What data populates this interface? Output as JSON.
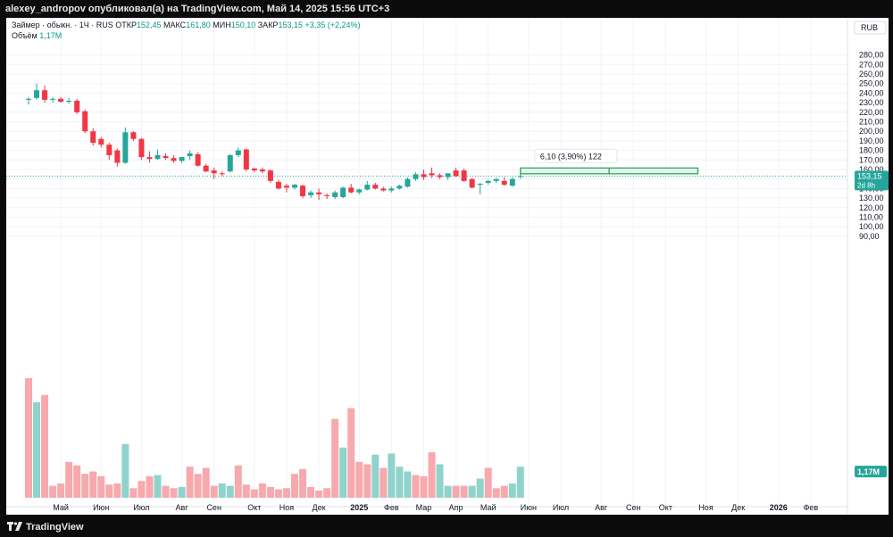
{
  "top_bar": {
    "text": "alexey_andropov опубликовал(а) на TradingView.com, Май 14, 2025 15:56 UTC+3"
  },
  "legend": {
    "symbol": "Займер · обыкн. · 1Ч · RUS",
    "open_label": "ОТКР",
    "open_value": "152,45",
    "high_label": "МАКС",
    "high_value": "161,80",
    "low_label": "МИН",
    "low_value": "150,10",
    "close_label": "ЗАКР",
    "close_value": "153,15",
    "change": "+3,35 (+2,24%)",
    "volume_label": "Объём",
    "volume_value": "1,17M"
  },
  "colors": {
    "up": "#26a69a",
    "down": "#f23645",
    "vol_up": "#8fd3cc",
    "vol_down": "#f7a9ae",
    "measure": "#2e9e40",
    "measure_fill": "#dff4f7",
    "text": "#131722",
    "grid": "#f0f3fa"
  },
  "footer": {
    "brand": "TradingView"
  },
  "chart_data": {
    "type": "candlestick",
    "currency": "RUB",
    "ylim": [
      85,
      290
    ],
    "y_ticks": [
      280,
      270,
      260,
      250,
      240,
      230,
      220,
      210,
      200,
      190,
      180,
      170,
      160,
      150,
      140,
      130,
      120,
      110,
      100,
      90
    ],
    "y_tick_labels": [
      "280,00",
      "270,00",
      "260,00",
      "250,00",
      "240,00",
      "230,00",
      "220,00",
      "210,00",
      "200,00",
      "190,00",
      "180,00",
      "170,00",
      "160,00",
      "150,00",
      "140,00",
      "130,00",
      "120,00",
      "110,00",
      "100,00",
      "90,00"
    ],
    "x_axis_labels": [
      {
        "label": "Май",
        "index": 4
      },
      {
        "label": "Июн",
        "index": 9
      },
      {
        "label": "Июл",
        "index": 14
      },
      {
        "label": "Авг",
        "index": 19
      },
      {
        "label": "Сен",
        "index": 23
      },
      {
        "label": "Окт",
        "index": 28
      },
      {
        "label": "Ноя",
        "index": 32
      },
      {
        "label": "Дек",
        "index": 36
      },
      {
        "label": "2025",
        "index": 41,
        "bold": true
      },
      {
        "label": "Фев",
        "index": 45
      },
      {
        "label": "Мар",
        "index": 49
      },
      {
        "label": "Апр",
        "index": 53
      },
      {
        "label": "Май",
        "index": 57
      },
      {
        "label": "Июн",
        "index": 62
      },
      {
        "label": "Июл",
        "index": 66
      },
      {
        "label": "Авг",
        "index": 71
      },
      {
        "label": "Сен",
        "index": 75
      },
      {
        "label": "Окт",
        "index": 79
      },
      {
        "label": "Ноя",
        "index": 84
      },
      {
        "label": "Дек",
        "index": 88
      },
      {
        "label": "2026",
        "index": 93,
        "bold": true
      },
      {
        "label": "Фев",
        "index": 97
      }
    ],
    "candles": [
      {
        "o": 233,
        "h": 236,
        "l": 228,
        "c": 234
      },
      {
        "o": 235,
        "h": 250,
        "l": 233,
        "c": 243
      },
      {
        "o": 243,
        "h": 248,
        "l": 230,
        "c": 233
      },
      {
        "o": 233,
        "h": 236,
        "l": 230,
        "c": 234
      },
      {
        "o": 234,
        "h": 236,
        "l": 230,
        "c": 231
      },
      {
        "o": 231,
        "h": 235,
        "l": 229,
        "c": 232
      },
      {
        "o": 232,
        "h": 234,
        "l": 218,
        "c": 220
      },
      {
        "o": 221,
        "h": 223,
        "l": 198,
        "c": 200
      },
      {
        "o": 200,
        "h": 203,
        "l": 185,
        "c": 188
      },
      {
        "o": 192,
        "h": 194,
        "l": 183,
        "c": 186
      },
      {
        "o": 186,
        "h": 188,
        "l": 170,
        "c": 175
      },
      {
        "o": 180,
        "h": 182,
        "l": 163,
        "c": 167
      },
      {
        "o": 167,
        "h": 204,
        "l": 166,
        "c": 199
      },
      {
        "o": 199,
        "h": 200,
        "l": 190,
        "c": 192
      },
      {
        "o": 192,
        "h": 193,
        "l": 170,
        "c": 173
      },
      {
        "o": 173,
        "h": 179,
        "l": 167,
        "c": 171
      },
      {
        "o": 171,
        "h": 181,
        "l": 170,
        "c": 175
      },
      {
        "o": 174,
        "h": 177,
        "l": 170,
        "c": 172
      },
      {
        "o": 172,
        "h": 175,
        "l": 167,
        "c": 169
      },
      {
        "o": 169,
        "h": 173,
        "l": 167,
        "c": 173
      },
      {
        "o": 174,
        "h": 180,
        "l": 170,
        "c": 177
      },
      {
        "o": 176,
        "h": 178,
        "l": 163,
        "c": 164
      },
      {
        "o": 164,
        "h": 166,
        "l": 157,
        "c": 158
      },
      {
        "o": 159,
        "h": 162,
        "l": 150,
        "c": 156
      },
      {
        "o": 156,
        "h": 158,
        "l": 153,
        "c": 155
      },
      {
        "o": 158,
        "h": 176,
        "l": 157,
        "c": 175
      },
      {
        "o": 175,
        "h": 183,
        "l": 173,
        "c": 180
      },
      {
        "o": 181,
        "h": 182,
        "l": 158,
        "c": 160
      },
      {
        "o": 161,
        "h": 162,
        "l": 157,
        "c": 159
      },
      {
        "o": 160,
        "h": 162,
        "l": 156,
        "c": 158
      },
      {
        "o": 159,
        "h": 160,
        "l": 146,
        "c": 148
      },
      {
        "o": 147,
        "h": 149,
        "l": 139,
        "c": 140
      },
      {
        "o": 143,
        "h": 145,
        "l": 136,
        "c": 141
      },
      {
        "o": 141,
        "h": 145,
        "l": 139,
        "c": 144
      },
      {
        "o": 143,
        "h": 144,
        "l": 130,
        "c": 132
      },
      {
        "o": 133,
        "h": 138,
        "l": 130,
        "c": 136
      },
      {
        "o": 136,
        "h": 140,
        "l": 128,
        "c": 134
      },
      {
        "o": 133,
        "h": 135,
        "l": 129,
        "c": 132
      },
      {
        "o": 131,
        "h": 138,
        "l": 129,
        "c": 136
      },
      {
        "o": 131,
        "h": 142,
        "l": 130,
        "c": 141
      },
      {
        "o": 141,
        "h": 145,
        "l": 135,
        "c": 136
      },
      {
        "o": 136,
        "h": 140,
        "l": 134,
        "c": 139
      },
      {
        "o": 139,
        "h": 148,
        "l": 138,
        "c": 144
      },
      {
        "o": 144,
        "h": 146,
        "l": 139,
        "c": 140
      },
      {
        "o": 140,
        "h": 142,
        "l": 137,
        "c": 138
      },
      {
        "o": 138,
        "h": 142,
        "l": 136,
        "c": 140
      },
      {
        "o": 140,
        "h": 144,
        "l": 139,
        "c": 143
      },
      {
        "o": 142,
        "h": 152,
        "l": 141,
        "c": 150
      },
      {
        "o": 150,
        "h": 157,
        "l": 148,
        "c": 155
      },
      {
        "o": 155,
        "h": 160,
        "l": 149,
        "c": 152
      },
      {
        "o": 156,
        "h": 162,
        "l": 151,
        "c": 154
      },
      {
        "o": 154,
        "h": 156,
        "l": 150,
        "c": 152
      },
      {
        "o": 152,
        "h": 155,
        "l": 149,
        "c": 156
      },
      {
        "o": 159,
        "h": 162,
        "l": 152,
        "c": 153
      },
      {
        "o": 159,
        "h": 161,
        "l": 147,
        "c": 148
      },
      {
        "o": 150,
        "h": 151,
        "l": 140,
        "c": 141
      },
      {
        "o": 144,
        "h": 146,
        "l": 134,
        "c": 145
      },
      {
        "o": 146,
        "h": 149,
        "l": 144,
        "c": 148
      },
      {
        "o": 148,
        "h": 151,
        "l": 146,
        "c": 150
      },
      {
        "o": 148,
        "h": 152,
        "l": 143,
        "c": 144
      },
      {
        "o": 143,
        "h": 152,
        "l": 142,
        "c": 150
      },
      {
        "o": 152.45,
        "h": 161.8,
        "l": 150.1,
        "c": 153.15
      }
    ],
    "volume": [
      {
        "v": 1.0,
        "up": false
      },
      {
        "v": 0.8,
        "up": true
      },
      {
        "v": 0.86,
        "up": false
      },
      {
        "v": 0.1,
        "up": false
      },
      {
        "v": 0.12,
        "up": false
      },
      {
        "v": 0.3,
        "up": false
      },
      {
        "v": 0.27,
        "up": false
      },
      {
        "v": 0.2,
        "up": false
      },
      {
        "v": 0.22,
        "up": false
      },
      {
        "v": 0.18,
        "up": false
      },
      {
        "v": 0.11,
        "up": false
      },
      {
        "v": 0.12,
        "up": false
      },
      {
        "v": 0.45,
        "up": true
      },
      {
        "v": 0.08,
        "up": false
      },
      {
        "v": 0.14,
        "up": false
      },
      {
        "v": 0.18,
        "up": false
      },
      {
        "v": 0.19,
        "up": true
      },
      {
        "v": 0.1,
        "up": false
      },
      {
        "v": 0.08,
        "up": false
      },
      {
        "v": 0.09,
        "up": true
      },
      {
        "v": 0.26,
        "up": false
      },
      {
        "v": 0.2,
        "up": false
      },
      {
        "v": 0.25,
        "up": false
      },
      {
        "v": 0.1,
        "up": false
      },
      {
        "v": 0.12,
        "up": true
      },
      {
        "v": 0.1,
        "up": true
      },
      {
        "v": 0.27,
        "up": false
      },
      {
        "v": 0.11,
        "up": false
      },
      {
        "v": 0.07,
        "up": false
      },
      {
        "v": 0.12,
        "up": false
      },
      {
        "v": 0.09,
        "up": false
      },
      {
        "v": 0.07,
        "up": false
      },
      {
        "v": 0.08,
        "up": false
      },
      {
        "v": 0.2,
        "up": false
      },
      {
        "v": 0.24,
        "up": false
      },
      {
        "v": 0.09,
        "up": false
      },
      {
        "v": 0.06,
        "up": false
      },
      {
        "v": 0.08,
        "up": false
      },
      {
        "v": 0.66,
        "up": false
      },
      {
        "v": 0.42,
        "up": true
      },
      {
        "v": 0.75,
        "up": false
      },
      {
        "v": 0.3,
        "up": false
      },
      {
        "v": 0.28,
        "up": false
      },
      {
        "v": 0.36,
        "up": true
      },
      {
        "v": 0.25,
        "up": false
      },
      {
        "v": 0.37,
        "up": true
      },
      {
        "v": 0.26,
        "up": true
      },
      {
        "v": 0.22,
        "up": true
      },
      {
        "v": 0.19,
        "up": false
      },
      {
        "v": 0.18,
        "up": false
      },
      {
        "v": 0.38,
        "up": false
      },
      {
        "v": 0.28,
        "up": true
      },
      {
        "v": 0.1,
        "up": true
      },
      {
        "v": 0.1,
        "up": false
      },
      {
        "v": 0.1,
        "up": false
      },
      {
        "v": 0.1,
        "up": true
      },
      {
        "v": 0.16,
        "up": true
      },
      {
        "v": 0.25,
        "up": false
      },
      {
        "v": 0.08,
        "up": false
      },
      {
        "v": 0.1,
        "up": false
      },
      {
        "v": 0.12,
        "up": true
      },
      {
        "v": 0.26,
        "up": true
      }
    ],
    "last_price": {
      "value": 153.15,
      "label": "153,15",
      "sublabel": "2d 8h"
    },
    "volume_last": {
      "label": "1,17M"
    },
    "measure_box": {
      "label": "6,10 (3,90%) 122",
      "from_index": 61,
      "to_index": 83,
      "low": 155.5,
      "high": 161.6
    }
  }
}
